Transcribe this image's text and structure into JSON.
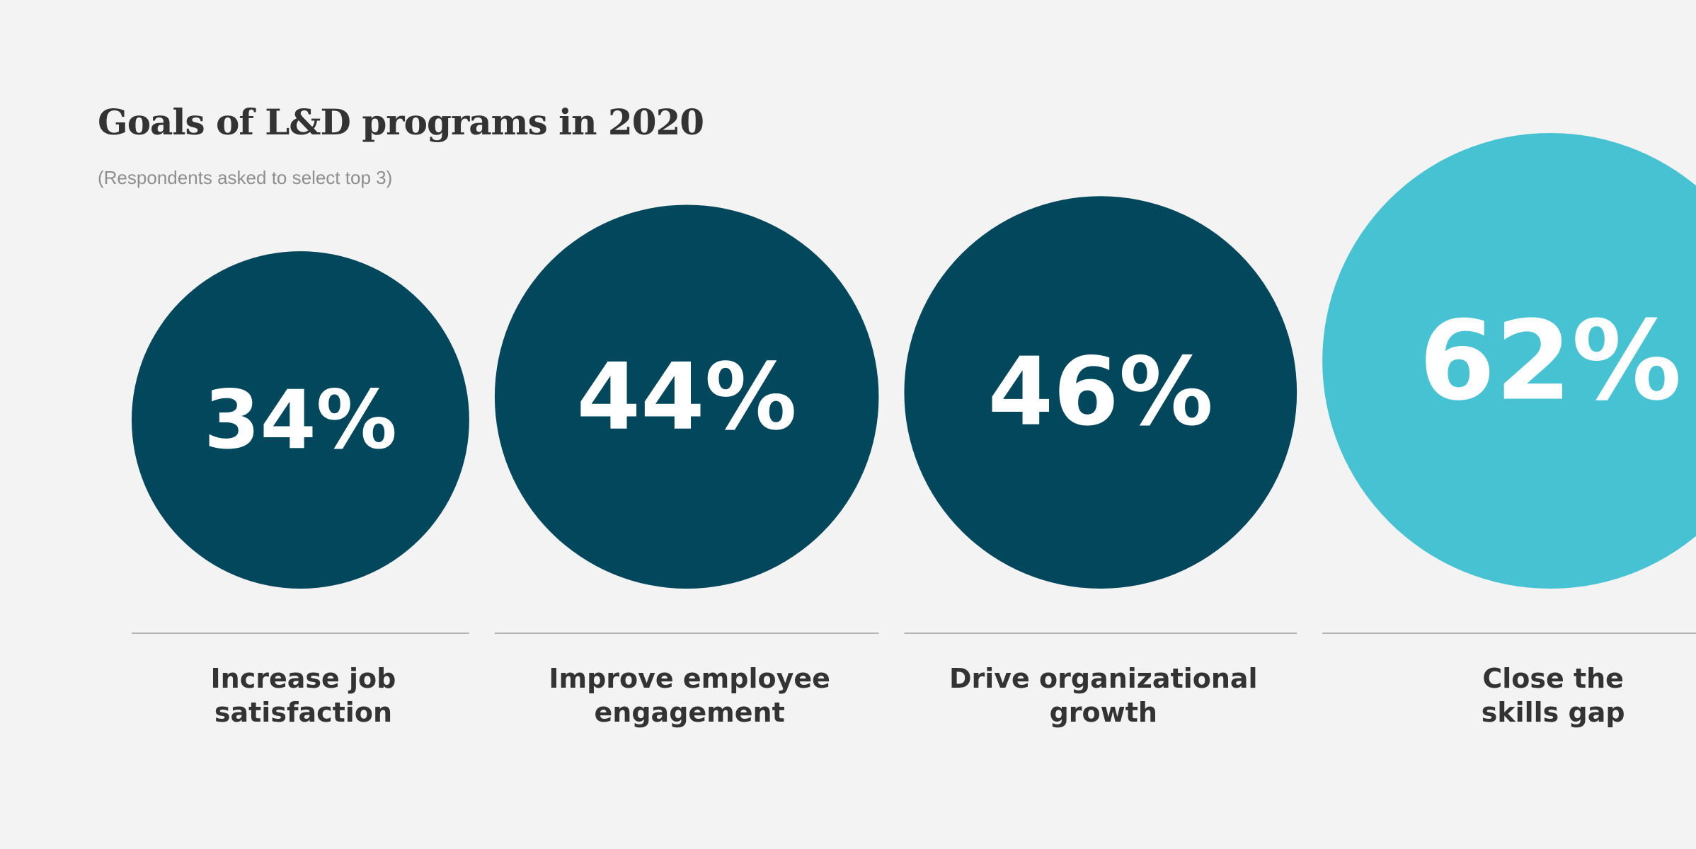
{
  "chart_data": {
    "type": "bubble",
    "title": "Goals of L&D programs in 2020",
    "subtitle": "(Respondents asked to select top 3)",
    "categories": [
      [
        "Increase job",
        "satisfaction"
      ],
      [
        "Improve employee",
        "engagement"
      ],
      [
        "Drive organizational",
        "growth"
      ],
      [
        "Close the",
        "skills gap"
      ]
    ],
    "values": [
      34,
      44,
      46,
      62
    ],
    "value_labels": [
      "34%",
      "44%",
      "46%",
      "62%"
    ],
    "unit": "%",
    "highlight_index": 3,
    "colors": {
      "bubble": "#02475c",
      "highlight": "#47c2d3",
      "value_text": "#ffffff",
      "category_text": "#333333",
      "divider": "#b5b5b5",
      "background": "#f3f3f3"
    }
  }
}
